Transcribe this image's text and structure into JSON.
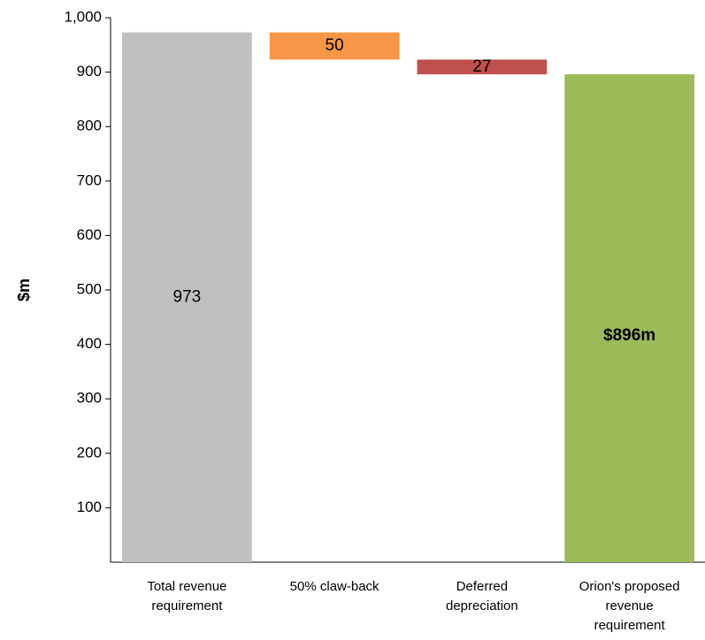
{
  "chart_data": {
    "type": "waterfall",
    "ylabel": "$m",
    "ylim": [
      0,
      1000
    ],
    "yticks": [
      {
        "value": 100,
        "label": "100"
      },
      {
        "value": 200,
        "label": "200"
      },
      {
        "value": 300,
        "label": "300"
      },
      {
        "value": 400,
        "label": "400"
      },
      {
        "value": 500,
        "label": "500"
      },
      {
        "value": 600,
        "label": "600"
      },
      {
        "value": 700,
        "label": "700"
      },
      {
        "value": 800,
        "label": "800"
      },
      {
        "value": 900,
        "label": "900"
      },
      {
        "value": 1000,
        "label": "1,000"
      }
    ],
    "grid": false,
    "legend": "none",
    "bars": [
      {
        "category": [
          "Total revenue",
          "requirement"
        ],
        "kind": "total",
        "start": 0,
        "end": 973,
        "value": 973,
        "label": "973",
        "label_position": "middle",
        "bold": false,
        "color": "#c0c0c0"
      },
      {
        "category": [
          "50% claw-back"
        ],
        "kind": "decrease",
        "start": 923,
        "end": 973,
        "value": 50,
        "label": "50",
        "label_position": "inside",
        "bold": false,
        "color": "#f79646"
      },
      {
        "category": [
          "Deferred",
          "depreciation"
        ],
        "kind": "decrease",
        "start": 896,
        "end": 923,
        "value": 27,
        "label": "27",
        "label_position": "inside",
        "bold": false,
        "color": "#c0504d"
      },
      {
        "category": [
          "Orion's proposed",
          "revenue",
          "requirement"
        ],
        "kind": "total",
        "start": 0,
        "end": 896,
        "value": 896,
        "label": "$896m",
        "label_position": "middle",
        "bold": true,
        "color": "#9bbb59"
      }
    ]
  }
}
